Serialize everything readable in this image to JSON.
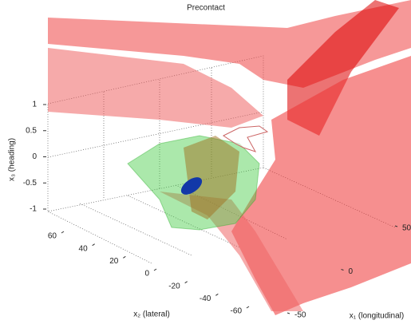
{
  "chart_data": {
    "type": "surface3d",
    "title": "Precontact",
    "zlabel": "x₃ (heading)",
    "ylabel": "x₂ (lateral)",
    "xlabel": "x₁ (longitudinal)",
    "zlim": [
      -1,
      1
    ],
    "zticks": [
      -1,
      -0.5,
      0,
      0.5,
      1
    ],
    "ylim": [
      60,
      -60
    ],
    "yticks": [
      60,
      40,
      20,
      0,
      -20,
      -40,
      -60
    ],
    "xlim": [
      50,
      -50
    ],
    "xticks": [
      50,
      0,
      -50
    ]
  }
}
